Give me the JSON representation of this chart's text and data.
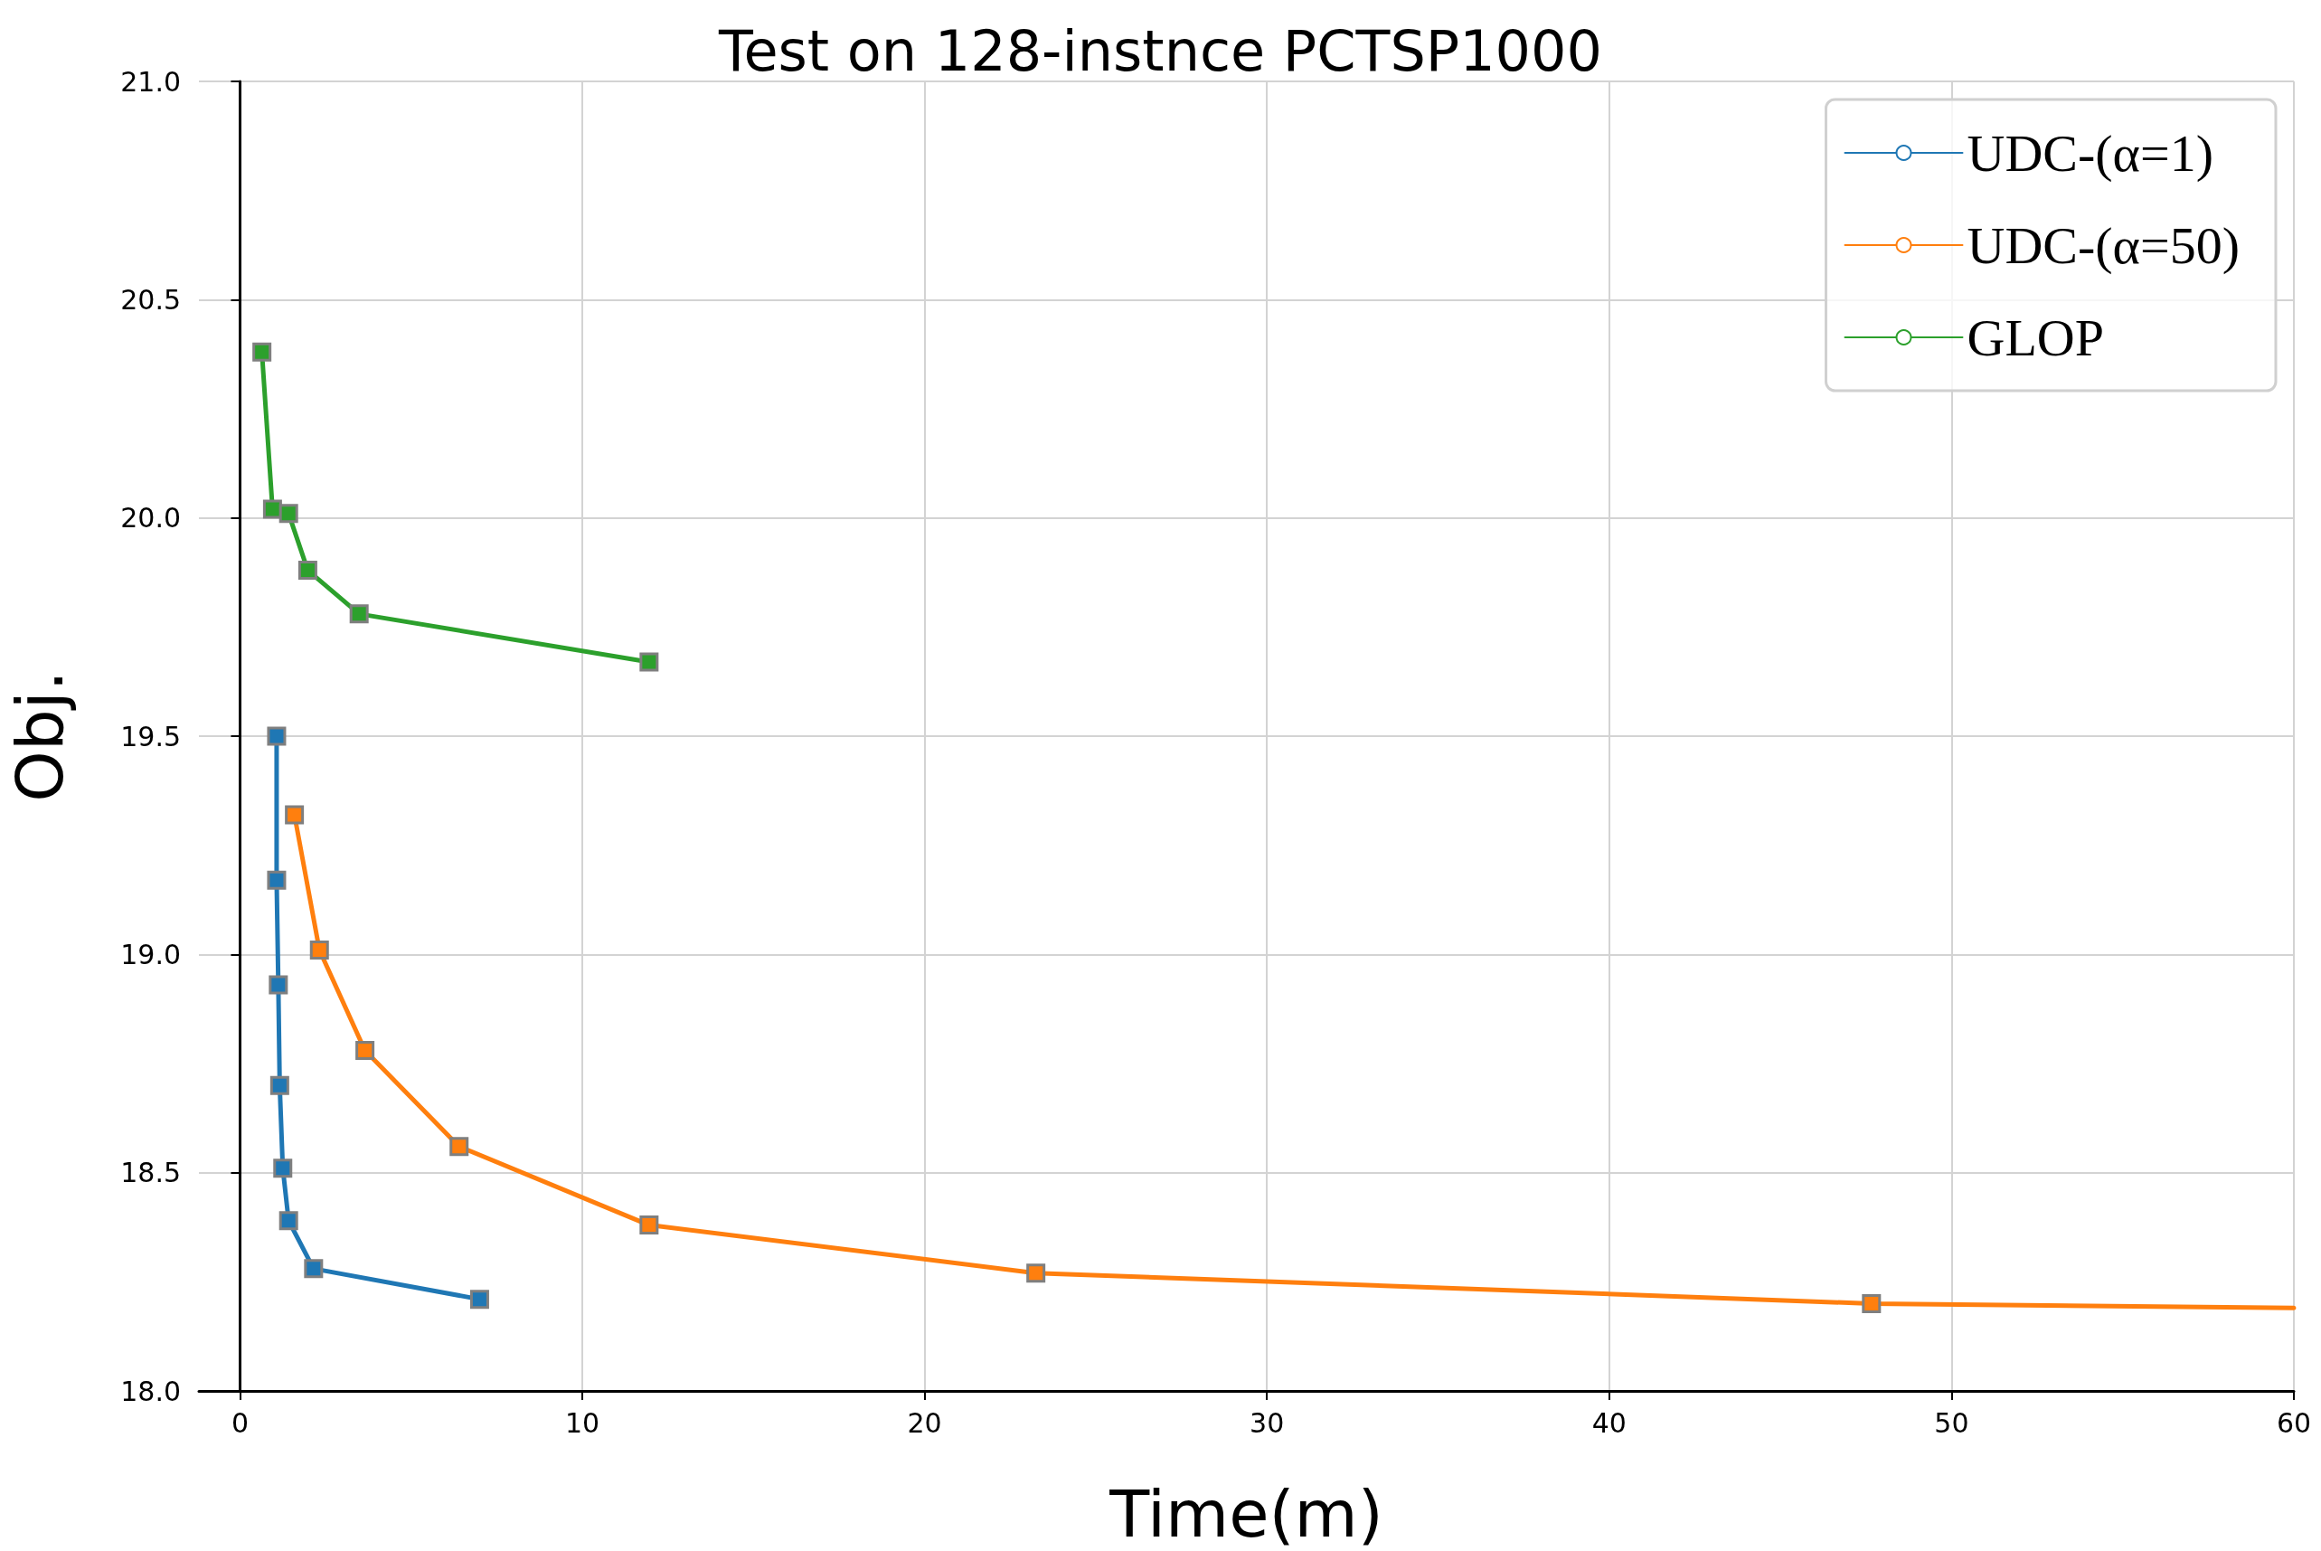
{
  "chart_data": {
    "type": "line",
    "title": "Test on 128-instnce PCTSP1000",
    "xlabel": "Time(m)",
    "ylabel": "Obj.",
    "xlim": [
      -1.2,
      60
    ],
    "xticks": [
      0,
      10,
      20,
      30,
      40,
      50,
      60
    ],
    "ylim": [
      18.0,
      21.0
    ],
    "yticks": [
      {
        "value": 18.0,
        "label": "18.0"
      },
      {
        "value": 18.5,
        "label": "18.5"
      },
      {
        "value": 19.0,
        "label": "19.0"
      },
      {
        "value": 19.5,
        "label": "19.5"
      },
      {
        "value": 20.0,
        "label": "20.0"
      },
      {
        "value": 20.5,
        "label": "20.5"
      },
      {
        "value": 21.0,
        "label": "21.0"
      }
    ],
    "grid": true,
    "legend": "top right",
    "marker": "square",
    "line_style": "solid",
    "series": [
      {
        "name": "UDC-(α=1)",
        "color": "#1f77b4",
        "x": [
          1.07,
          1.07,
          1.12,
          1.16,
          1.25,
          1.42,
          2.15,
          7.0
        ],
        "values": [
          19.5,
          19.17,
          18.93,
          18.7,
          18.51,
          18.39,
          18.28,
          18.21
        ]
      },
      {
        "name": "UDC-(α=50)",
        "color": "#ff7f0e",
        "x": [
          1.59,
          2.32,
          3.65,
          6.4,
          11.95,
          23.25,
          47.66,
          60
        ],
        "values": [
          19.32,
          19.01,
          18.78,
          18.56,
          18.38,
          18.27,
          18.2,
          18.19
        ]
      },
      {
        "name": "GLOP",
        "color": "#2ca02c",
        "x": [
          0.64,
          0.95,
          1.42,
          1.98,
          3.48,
          11.95
        ],
        "values": [
          20.38,
          20.02,
          20.01,
          19.88,
          19.78,
          19.67
        ]
      }
    ]
  }
}
